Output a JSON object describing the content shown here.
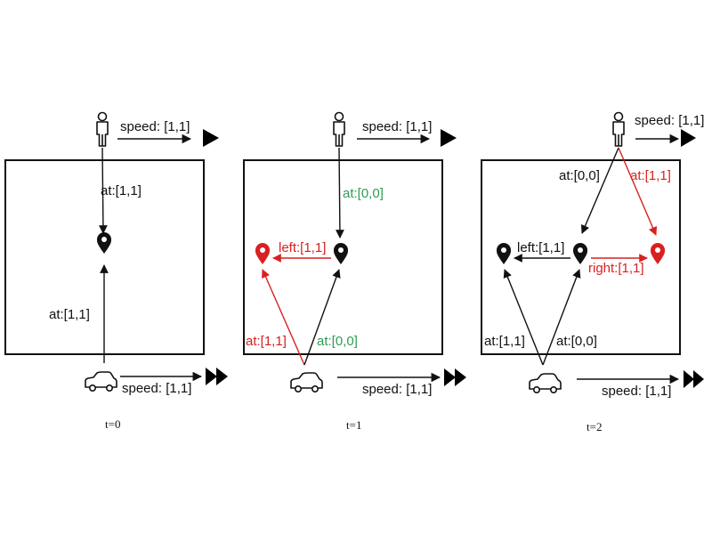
{
  "colors": {
    "black": "#111111",
    "red": "#d92020",
    "green": "#2e9d52"
  },
  "icons": {
    "person": "person-icon",
    "car": "car-icon",
    "pin": "location-pin-icon",
    "speed": "fast-forward-icon"
  },
  "panels": [
    {
      "time": "t=0",
      "person_speed": "speed: [1,1]",
      "car_speed": "speed: [1,1]",
      "person_edges": [
        {
          "label": "at:[1,1]",
          "color": "black"
        }
      ],
      "car_edges": [
        {
          "label": "at:[1,1]",
          "color": "black"
        }
      ],
      "pin_relations": []
    },
    {
      "time": "t=1",
      "person_speed": "speed: [1,1]",
      "car_speed": "speed: [1,1]",
      "person_edges": [
        {
          "label": "at:[0,0]",
          "color": "green"
        }
      ],
      "car_edges": [
        {
          "label": "at:[1,1]",
          "color": "red"
        },
        {
          "label": "at:[0,0]",
          "color": "green"
        }
      ],
      "pin_relations": [
        {
          "label": "left:[1,1]",
          "color": "red"
        }
      ]
    },
    {
      "time": "t=2",
      "person_speed": "speed: [1,1]",
      "car_speed": "speed: [1,1]",
      "person_edges": [
        {
          "label": "at:[0,0]",
          "color": "black"
        },
        {
          "label": "at:[1,1]",
          "color": "red"
        }
      ],
      "car_edges": [
        {
          "label": "at:[1,1]",
          "color": "black"
        },
        {
          "label": "at:[0,0]",
          "color": "black"
        }
      ],
      "pin_relations": [
        {
          "label": "left:[1,1]",
          "color": "black"
        },
        {
          "label": "right:[1,1]",
          "color": "red"
        }
      ]
    }
  ]
}
